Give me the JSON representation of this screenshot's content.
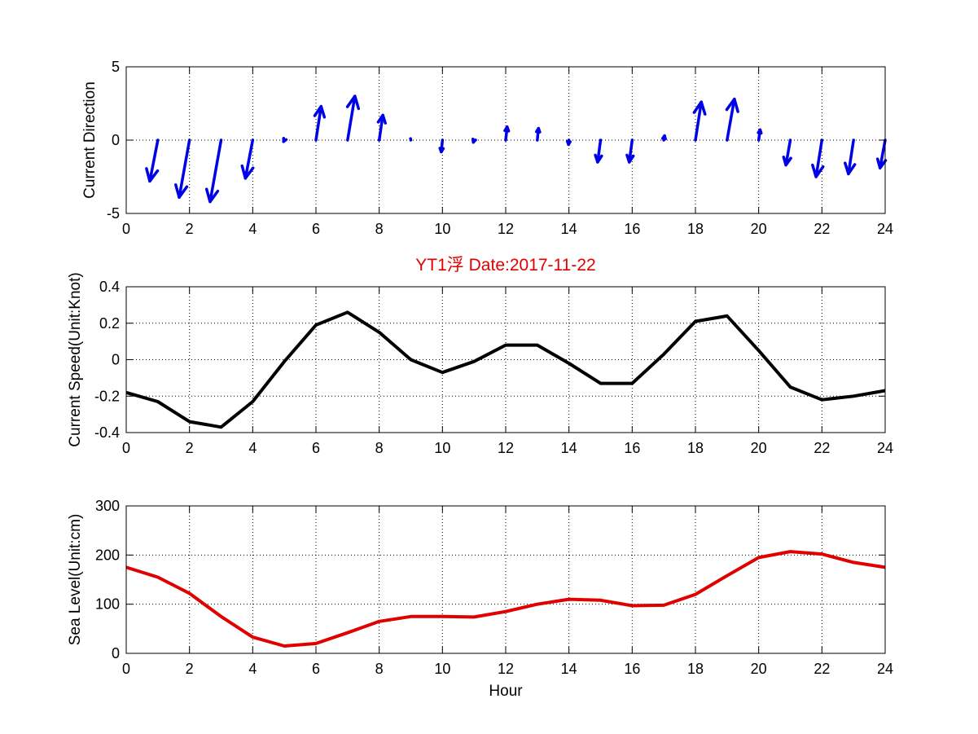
{
  "figure": {
    "title": "YT1浮    Date:2017-11-22",
    "title_color": "#e00000"
  },
  "chart_data": [
    {
      "type": "quiver",
      "ylabel": "Current Direction",
      "xlabel": "",
      "xlim": [
        0,
        24
      ],
      "ylim": [
        -5,
        5
      ],
      "xticks": [
        0,
        2,
        4,
        6,
        8,
        10,
        12,
        14,
        16,
        18,
        20,
        22,
        24
      ],
      "yticks": [
        -5,
        0,
        5
      ],
      "grid": true,
      "color": "#0000e6",
      "series": [
        {
          "x": 1,
          "u": -0.55,
          "v": -2.8
        },
        {
          "x": 2,
          "u": -0.7,
          "v": -3.9
        },
        {
          "x": 3,
          "u": -0.75,
          "v": -4.2
        },
        {
          "x": 4,
          "u": -0.5,
          "v": -2.6
        },
        {
          "x": 5,
          "u": -0.05,
          "v": -0.1
        },
        {
          "x": 6,
          "u": 0.35,
          "v": 2.3
        },
        {
          "x": 7,
          "u": 0.5,
          "v": 3.0
        },
        {
          "x": 8,
          "u": 0.25,
          "v": 1.7
        },
        {
          "x": 9,
          "u": -0.02,
          "v": 0.1
        },
        {
          "x": 10,
          "u": -0.08,
          "v": -0.8
        },
        {
          "x": 11,
          "u": -0.05,
          "v": -0.15
        },
        {
          "x": 12,
          "u": 0.1,
          "v": 0.9
        },
        {
          "x": 13,
          "u": 0.08,
          "v": 0.8
        },
        {
          "x": 14,
          "u": -0.03,
          "v": -0.3
        },
        {
          "x": 15,
          "u": -0.2,
          "v": -1.5
        },
        {
          "x": 16,
          "u": -0.2,
          "v": -1.5
        },
        {
          "x": 17,
          "u": 0.05,
          "v": 0.3
        },
        {
          "x": 18,
          "u": 0.4,
          "v": 2.6
        },
        {
          "x": 19,
          "u": 0.5,
          "v": 2.8
        },
        {
          "x": 20,
          "u": 0.1,
          "v": 0.7
        },
        {
          "x": 21,
          "u": -0.3,
          "v": -1.7
        },
        {
          "x": 22,
          "u": -0.4,
          "v": -2.5
        },
        {
          "x": 23,
          "u": -0.35,
          "v": -2.3
        },
        {
          "x": 24,
          "u": -0.35,
          "v": -1.9
        }
      ]
    },
    {
      "type": "line",
      "ylabel": "Current Speed(Unit:Knot)",
      "xlabel": "",
      "xlim": [
        0,
        24
      ],
      "ylim": [
        -0.4,
        0.4
      ],
      "xticks": [
        0,
        2,
        4,
        6,
        8,
        10,
        12,
        14,
        16,
        18,
        20,
        22,
        24
      ],
      "yticks": [
        -0.4,
        -0.2,
        0,
        0.2,
        0.4
      ],
      "grid": true,
      "color": "#000000",
      "x": [
        0,
        1,
        2,
        3,
        4,
        5,
        6,
        7,
        8,
        9,
        10,
        11,
        12,
        13,
        14,
        15,
        16,
        17,
        18,
        19,
        20,
        21,
        22,
        23,
        24
      ],
      "values": [
        -0.18,
        -0.23,
        -0.34,
        -0.37,
        -0.23,
        -0.01,
        0.19,
        0.26,
        0.15,
        0.0,
        -0.07,
        -0.01,
        0.08,
        0.08,
        -0.02,
        -0.13,
        -0.13,
        0.03,
        0.21,
        0.24,
        0.05,
        -0.15,
        -0.22,
        -0.2,
        -0.17
      ]
    },
    {
      "type": "line",
      "ylabel": "Sea Level(Unit:cm)",
      "xlabel": "Hour",
      "xlim": [
        0,
        24
      ],
      "ylim": [
        0,
        300
      ],
      "xticks": [
        0,
        2,
        4,
        6,
        8,
        10,
        12,
        14,
        16,
        18,
        20,
        22,
        24
      ],
      "yticks": [
        0,
        100,
        200,
        300
      ],
      "grid": true,
      "color": "#e00000",
      "x": [
        0,
        1,
        2,
        3,
        4,
        5,
        6,
        7,
        8,
        9,
        10,
        11,
        12,
        13,
        14,
        15,
        16,
        17,
        18,
        19,
        20,
        21,
        22,
        23,
        24
      ],
      "values": [
        175,
        155,
        122,
        75,
        33,
        15,
        20,
        42,
        65,
        75,
        75,
        74,
        85,
        100,
        110,
        108,
        97,
        98,
        120,
        158,
        195,
        207,
        202,
        185,
        175
      ]
    }
  ]
}
